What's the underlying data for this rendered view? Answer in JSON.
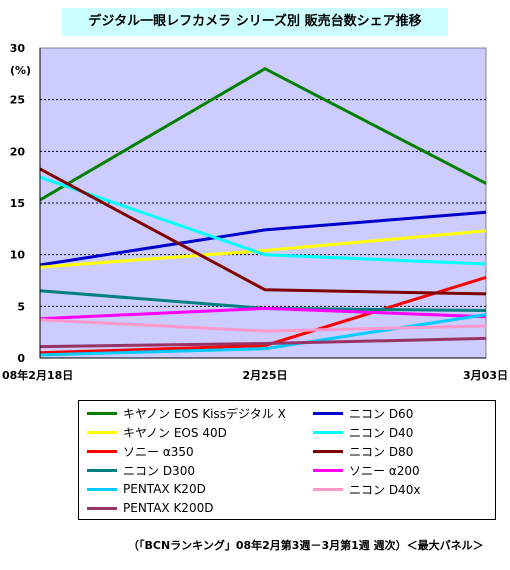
{
  "chart_data": {
    "type": "line",
    "title": "デジタル一眼レフカメラ シリーズ別 販売台数シェア推移",
    "ylabel": "(%)",
    "xlabel": "",
    "categories": [
      "08年2月18日",
      "2月25日",
      "3月03日"
    ],
    "ylim": [
      0,
      30
    ],
    "yticks": [
      0,
      5,
      10,
      15,
      20,
      25,
      30
    ],
    "grid": true,
    "legend_position": "bottom",
    "plot_background": "#ccccff",
    "series": [
      {
        "name": "キヤノン EOS Kissデジタル X",
        "color": "#008000",
        "values": [
          15.3,
          28.0,
          16.9
        ]
      },
      {
        "name": "ニコン D60",
        "color": "#0000cc",
        "values": [
          9.0,
          12.4,
          14.1
        ]
      },
      {
        "name": "キヤノン EOS 40D",
        "color": "#ffff00",
        "values": [
          8.8,
          10.4,
          12.3
        ]
      },
      {
        "name": "ニコン D40",
        "color": "#00ffff",
        "values": [
          17.5,
          10.0,
          9.1
        ]
      },
      {
        "name": "ソニー α350",
        "color": "#ff0000",
        "values": [
          0.5,
          1.2,
          7.8
        ]
      },
      {
        "name": "ニコン D80",
        "color": "#800000",
        "values": [
          18.3,
          6.6,
          6.2
        ]
      },
      {
        "name": "ニコン D300",
        "color": "#008080",
        "values": [
          6.5,
          4.8,
          4.6
        ]
      },
      {
        "name": "ソニー α200",
        "color": "#ff00ff",
        "values": [
          3.8,
          4.8,
          4.0
        ]
      },
      {
        "name": "PENTAX K20D",
        "color": "#00ccff",
        "values": [
          0.3,
          0.9,
          4.2
        ]
      },
      {
        "name": "ニコン D40x",
        "color": "#ff99cc",
        "values": [
          3.7,
          2.6,
          3.1
        ]
      },
      {
        "name": "PENTAX K200D",
        "color": "#993366",
        "values": [
          1.1,
          1.4,
          1.9
        ]
      }
    ],
    "source": "（「BCNランキング」08年2月第3週－3月第1週 週次）＜最大パネル＞"
  }
}
